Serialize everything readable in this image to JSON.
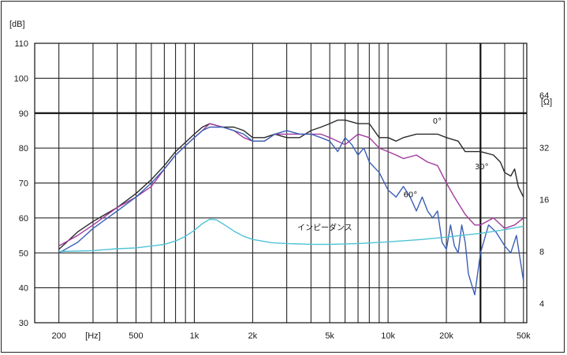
{
  "chart_data": {
    "type": "line",
    "y_unit_label": "[dB]",
    "y2_unit_label": "[Ω]",
    "x_unit_label": "[Hz]",
    "x_scale": "log",
    "xlim": [
      150,
      52000
    ],
    "ylim": [
      30,
      110
    ],
    "y2_scale": "log",
    "y2lim": [
      3.1,
      128
    ],
    "grid": true,
    "x_ticks": [
      {
        "value": 200,
        "label": "200"
      },
      {
        "value": 500,
        "label": "500"
      },
      {
        "value": 1000,
        "label": "1k"
      },
      {
        "value": 2000,
        "label": "2k"
      },
      {
        "value": 5000,
        "label": "5k"
      },
      {
        "value": 10000,
        "label": "10k"
      },
      {
        "value": 20000,
        "label": "20k"
      },
      {
        "value": 50000,
        "label": "50k"
      }
    ],
    "y_ticks": [
      {
        "value": 30,
        "label": "30"
      },
      {
        "value": 40,
        "label": "40"
      },
      {
        "value": 50,
        "label": "50"
      },
      {
        "value": 60,
        "label": "60"
      },
      {
        "value": 70,
        "label": "70"
      },
      {
        "value": 80,
        "label": "80"
      },
      {
        "value": 90,
        "label": "90"
      },
      {
        "value": 100,
        "label": "100"
      },
      {
        "value": 110,
        "label": "110"
      }
    ],
    "y2_ticks": [
      {
        "value": 4,
        "label": "4"
      },
      {
        "value": 8,
        "label": "8"
      },
      {
        "value": 16,
        "label": "16"
      },
      {
        "value": 32,
        "label": "32"
      },
      {
        "value": 64,
        "label": "64"
      }
    ],
    "series": [
      {
        "name": "0°",
        "color": "#2a2a2a",
        "axis": "left",
        "x": [
          200,
          250,
          300,
          400,
          500,
          600,
          700,
          800,
          1000,
          1100,
          1200,
          1400,
          1600,
          1800,
          2000,
          2300,
          2600,
          3000,
          3500,
          4000,
          4500,
          5000,
          5500,
          6000,
          7000,
          8000,
          9000,
          10000,
          11000,
          12000,
          14000,
          16000,
          18000,
          20000,
          23000,
          25000,
          28000,
          30000,
          35000,
          38000,
          40000,
          43000,
          45000,
          47000,
          50000
        ],
        "y": [
          51,
          56,
          59,
          63,
          67,
          71,
          75,
          79,
          84,
          86,
          87,
          86,
          86,
          85,
          83,
          83,
          84,
          83,
          83,
          85,
          86,
          87,
          88,
          88,
          87,
          87,
          83,
          83,
          82,
          83,
          84,
          84,
          84,
          83,
          82,
          79,
          79,
          79,
          78,
          76,
          73,
          72,
          74,
          69,
          66
        ]
      },
      {
        "name": "30°",
        "color": "#a23a9e",
        "axis": "left",
        "x": [
          200,
          250,
          300,
          400,
          500,
          600,
          700,
          800,
          1000,
          1100,
          1200,
          1400,
          1600,
          1800,
          2000,
          2300,
          2600,
          3000,
          3500,
          4000,
          4500,
          5000,
          6000,
          7000,
          8000,
          9000,
          10000,
          11000,
          12000,
          14000,
          16000,
          18000,
          20000,
          22000,
          25000,
          28000,
          30000,
          35000,
          40000,
          45000,
          50000
        ],
        "y": [
          52,
          55,
          58,
          63,
          66,
          69,
          74,
          78,
          83,
          85,
          87,
          86,
          85,
          83,
          82,
          82,
          84,
          84,
          84,
          84,
          84,
          83,
          81,
          84,
          83,
          80,
          79,
          78,
          77,
          78,
          76,
          75,
          70,
          66,
          61,
          58,
          58,
          60,
          57,
          58,
          60
        ]
      },
      {
        "name": "60°",
        "color": "#3a5fb5",
        "axis": "left",
        "x": [
          200,
          250,
          300,
          400,
          500,
          600,
          700,
          800,
          1000,
          1100,
          1200,
          1400,
          1600,
          1800,
          2000,
          2300,
          2600,
          3000,
          3500,
          4000,
          4500,
          5000,
          5500,
          6000,
          6500,
          7000,
          7500,
          8000,
          9000,
          10000,
          11000,
          12000,
          13000,
          14000,
          15000,
          16000,
          17000,
          18000,
          19000,
          20000,
          21000,
          22000,
          23000,
          24000,
          25000,
          26000,
          28000,
          30000,
          33000,
          36000,
          38000,
          40000,
          43000,
          46000,
          50000
        ],
        "y": [
          50,
          53,
          57,
          62,
          66,
          70,
          74,
          78,
          83,
          85,
          86,
          86,
          85,
          84,
          82,
          82,
          84,
          85,
          84,
          84,
          83,
          82,
          79,
          83,
          81,
          78,
          80,
          76,
          73,
          68,
          66,
          69,
          66,
          62,
          66,
          62,
          60,
          62,
          53,
          51,
          58,
          52,
          50,
          58,
          53,
          44,
          38,
          50,
          58,
          56,
          54,
          52,
          50,
          55,
          42
        ]
      },
      {
        "name": "インピーダンス",
        "color": "#4ec3d6",
        "axis": "right",
        "x": [
          200,
          300,
          400,
          500,
          600,
          700,
          800,
          900,
          1000,
          1100,
          1200,
          1300,
          1400,
          1600,
          1800,
          2000,
          2500,
          3000,
          4000,
          5000,
          7000,
          10000,
          15000,
          20000,
          30000,
          40000,
          50000
        ],
        "y": [
          8.0,
          8.1,
          8.3,
          8.4,
          8.6,
          8.8,
          9.2,
          9.8,
          10.6,
          11.6,
          12.3,
          12.2,
          11.6,
          10.5,
          9.8,
          9.4,
          9.0,
          8.9,
          8.8,
          8.8,
          8.9,
          9.1,
          9.4,
          9.7,
          10.2,
          10.7,
          11.2
        ]
      }
    ],
    "annotations": [
      {
        "text": "0°",
        "series": "0°"
      },
      {
        "text": "30°",
        "series": "30°"
      },
      {
        "text": "60°",
        "series": "60°"
      },
      {
        "text": "インピーダンス",
        "series": "インピーダンス"
      }
    ]
  }
}
